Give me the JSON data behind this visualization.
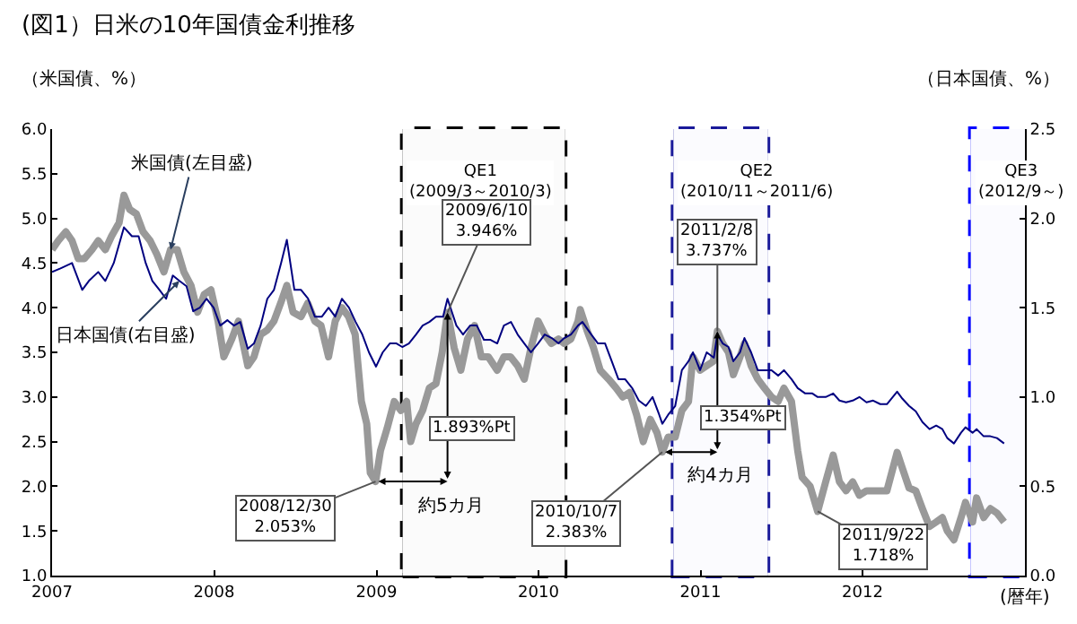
{
  "chart_data": {
    "type": "line",
    "title": "(図1）日米の10年国債金利推移",
    "ylabel": "（米国債、%）",
    "y2label": "（日本国債、%）",
    "xlabel": "(暦年)",
    "xlim": [
      "2007",
      "2013"
    ],
    "xticks": [
      "2007",
      "2008",
      "2009",
      "2010",
      "2011",
      "2012"
    ],
    "ylim": [
      1.0,
      6.0
    ],
    "yticks": [
      {
        "value": 1.0,
        "label": "1.0"
      },
      {
        "value": 1.5,
        "label": "1.5"
      },
      {
        "value": 2.0,
        "label": "2.0"
      },
      {
        "value": 2.5,
        "label": "2.5"
      },
      {
        "value": 3.0,
        "label": "3.0"
      },
      {
        "value": 3.5,
        "label": "3.5"
      },
      {
        "value": 4.0,
        "label": "4.0"
      },
      {
        "value": 4.5,
        "label": "4.5"
      },
      {
        "value": 5.0,
        "label": "5.0"
      },
      {
        "value": 5.5,
        "label": "5.5"
      },
      {
        "value": 6.0,
        "label": "6.0"
      }
    ],
    "y2lim": [
      0.0,
      2.5
    ],
    "y2ticks": [
      {
        "value": 0.0,
        "label": "0.0"
      },
      {
        "value": 0.5,
        "label": "0.5"
      },
      {
        "value": 1.0,
        "label": "1.0"
      },
      {
        "value": 1.5,
        "label": "1.5"
      },
      {
        "value": 2.0,
        "label": "2.0"
      },
      {
        "value": 2.5,
        "label": "2.5"
      }
    ],
    "grid": false,
    "legend": false,
    "marker": "none",
    "line_style": "solid",
    "series": [
      {
        "name": "米国債(左目盛)",
        "color": "#999999",
        "x": [
          "2007-01-01",
          "2007-01-15",
          "2007-02-01",
          "2007-02-15",
          "2007-03-01",
          "2007-03-15",
          "2007-04-01",
          "2007-04-15",
          "2007-05-01",
          "2007-05-15",
          "2007-06-01",
          "2007-06-12",
          "2007-06-25",
          "2007-07-10",
          "2007-07-25",
          "2007-08-10",
          "2007-08-25",
          "2007-09-10",
          "2007-09-25",
          "2007-10-10",
          "2007-10-25",
          "2007-11-10",
          "2007-11-25",
          "2007-12-10",
          "2007-12-25",
          "2008-01-10",
          "2008-01-23",
          "2008-02-10",
          "2008-02-25",
          "2008-03-17",
          "2008-03-31",
          "2008-04-15",
          "2008-04-30",
          "2008-05-15",
          "2008-05-30",
          "2008-06-13",
          "2008-06-27",
          "2008-07-15",
          "2008-07-30",
          "2008-08-15",
          "2008-08-29",
          "2008-09-15",
          "2008-09-30",
          "2008-10-15",
          "2008-10-30",
          "2008-11-14",
          "2008-11-28",
          "2008-12-10",
          "2008-12-18",
          "2008-12-30",
          "2009-01-10",
          "2009-01-25",
          "2009-02-10",
          "2009-02-25",
          "2009-03-10",
          "2009-03-19",
          "2009-03-31",
          "2009-04-15",
          "2009-04-30",
          "2009-05-15",
          "2009-05-29",
          "2009-06-10",
          "2009-06-25",
          "2009-07-10",
          "2009-07-25",
          "2009-08-10",
          "2009-08-25",
          "2009-09-10",
          "2009-09-30",
          "2009-10-15",
          "2009-10-30",
          "2009-11-15",
          "2009-11-30",
          "2009-12-15",
          "2009-12-31",
          "2010-01-15",
          "2010-01-30",
          "2010-02-15",
          "2010-02-28",
          "2010-03-15",
          "2010-03-31",
          "2010-04-05",
          "2010-04-20",
          "2010-05-05",
          "2010-05-20",
          "2010-06-08",
          "2010-06-25",
          "2010-07-10",
          "2010-07-25",
          "2010-08-10",
          "2010-08-25",
          "2010-09-10",
          "2010-09-25",
          "2010-10-07",
          "2010-10-20",
          "2010-11-05",
          "2010-11-20",
          "2010-12-05",
          "2010-12-15",
          "2010-12-31",
          "2011-01-15",
          "2011-01-30",
          "2011-02-08",
          "2011-02-20",
          "2011-03-05",
          "2011-03-16",
          "2011-03-31",
          "2011-04-10",
          "2011-04-25",
          "2011-05-10",
          "2011-05-25",
          "2011-06-10",
          "2011-06-25",
          "2011-07-08",
          "2011-07-25",
          "2011-08-08",
          "2011-08-18",
          "2011-09-05",
          "2011-09-22",
          "2011-10-10",
          "2011-10-27",
          "2011-11-10",
          "2011-11-25",
          "2011-12-10",
          "2011-12-25",
          "2012-01-10",
          "2012-01-25",
          "2012-02-10",
          "2012-02-25",
          "2012-03-19",
          "2012-03-31",
          "2012-04-15",
          "2012-04-30",
          "2012-05-15",
          "2012-05-31",
          "2012-06-15",
          "2012-06-29",
          "2012-07-10",
          "2012-07-25",
          "2012-08-10",
          "2012-08-20",
          "2012-09-05",
          "2012-09-14",
          "2012-09-30",
          "2012-10-15",
          "2012-10-30",
          "2012-11-15"
        ],
        "values": [
          4.65,
          4.75,
          4.85,
          4.75,
          4.55,
          4.55,
          4.65,
          4.75,
          4.65,
          4.8,
          4.95,
          5.26,
          5.1,
          5.05,
          4.85,
          4.75,
          4.6,
          4.4,
          4.65,
          4.65,
          4.4,
          4.25,
          3.95,
          4.15,
          4.2,
          3.85,
          3.45,
          3.65,
          3.85,
          3.35,
          3.45,
          3.7,
          3.75,
          3.85,
          4.05,
          4.25,
          3.95,
          3.9,
          4.05,
          3.85,
          3.8,
          3.45,
          3.85,
          4.0,
          3.9,
          3.7,
          2.95,
          2.7,
          2.15,
          2.053,
          2.4,
          2.65,
          2.95,
          2.85,
          2.95,
          2.5,
          2.7,
          2.85,
          3.1,
          3.15,
          3.5,
          3.946,
          3.55,
          3.3,
          3.65,
          3.8,
          3.45,
          3.45,
          3.3,
          3.45,
          3.45,
          3.35,
          3.2,
          3.55,
          3.85,
          3.7,
          3.6,
          3.65,
          3.6,
          3.65,
          3.85,
          3.98,
          3.75,
          3.55,
          3.3,
          3.2,
          3.1,
          3.0,
          3.05,
          2.8,
          2.5,
          2.75,
          2.6,
          2.383,
          2.55,
          2.55,
          2.85,
          2.95,
          3.45,
          3.3,
          3.35,
          3.4,
          3.737,
          3.6,
          3.5,
          3.25,
          3.45,
          3.6,
          3.35,
          3.2,
          3.1,
          3.0,
          2.95,
          3.1,
          2.95,
          2.4,
          2.1,
          2.0,
          1.718,
          2.05,
          2.35,
          2.05,
          1.95,
          2.05,
          1.9,
          1.95,
          1.95,
          1.95,
          1.95,
          2.38,
          2.2,
          1.98,
          1.95,
          1.75,
          1.55,
          1.6,
          1.65,
          1.5,
          1.4,
          1.65,
          1.82,
          1.6,
          1.87,
          1.65,
          1.75,
          1.7,
          1.6
        ]
      },
      {
        "name": "日本国債(右目盛)",
        "color": "#000080",
        "axis": "y2",
        "x": [
          "2007-01-01",
          "2007-01-20",
          "2007-02-15",
          "2007-03-10",
          "2007-03-25",
          "2007-04-15",
          "2007-05-01",
          "2007-05-20",
          "2007-06-12",
          "2007-06-30",
          "2007-07-15",
          "2007-07-31",
          "2007-08-15",
          "2007-08-31",
          "2007-09-15",
          "2007-09-30",
          "2007-10-15",
          "2007-10-31",
          "2007-11-15",
          "2007-11-30",
          "2007-12-15",
          "2007-12-31",
          "2008-01-15",
          "2008-01-31",
          "2008-02-15",
          "2008-02-29",
          "2008-03-17",
          "2008-03-31",
          "2008-04-15",
          "2008-04-30",
          "2008-05-15",
          "2008-05-31",
          "2008-06-13",
          "2008-06-30",
          "2008-07-15",
          "2008-07-31",
          "2008-08-15",
          "2008-08-31",
          "2008-09-15",
          "2008-09-30",
          "2008-10-15",
          "2008-10-31",
          "2008-11-15",
          "2008-11-30",
          "2008-12-15",
          "2008-12-31",
          "2009-01-15",
          "2009-01-31",
          "2009-02-15",
          "2009-02-28",
          "2009-03-15",
          "2009-03-31",
          "2009-04-15",
          "2009-04-30",
          "2009-05-15",
          "2009-05-31",
          "2009-06-10",
          "2009-06-30",
          "2009-07-15",
          "2009-07-31",
          "2009-08-15",
          "2009-08-31",
          "2009-09-15",
          "2009-09-30",
          "2009-10-15",
          "2009-10-31",
          "2009-11-15",
          "2009-11-30",
          "2009-12-15",
          "2009-12-31",
          "2010-01-15",
          "2010-01-31",
          "2010-02-15",
          "2010-02-28",
          "2010-03-15",
          "2010-03-31",
          "2010-04-10",
          "2010-04-30",
          "2010-05-15",
          "2010-05-31",
          "2010-06-15",
          "2010-06-30",
          "2010-07-15",
          "2010-07-31",
          "2010-08-15",
          "2010-08-31",
          "2010-09-15",
          "2010-09-30",
          "2010-10-07",
          "2010-10-20",
          "2010-11-05",
          "2010-11-20",
          "2010-12-05",
          "2010-12-15",
          "2010-12-31",
          "2011-01-15",
          "2011-01-31",
          "2011-02-08",
          "2011-02-20",
          "2011-03-05",
          "2011-03-16",
          "2011-03-31",
          "2011-04-10",
          "2011-04-25",
          "2011-05-10",
          "2011-05-25",
          "2011-06-10",
          "2011-06-25",
          "2011-07-08",
          "2011-07-25",
          "2011-08-08",
          "2011-08-25",
          "2011-09-10",
          "2011-09-22",
          "2011-10-10",
          "2011-10-27",
          "2011-11-10",
          "2011-11-25",
          "2011-12-10",
          "2011-12-25",
          "2012-01-10",
          "2012-01-25",
          "2012-02-10",
          "2012-02-25",
          "2012-03-19",
          "2012-03-31",
          "2012-04-15",
          "2012-04-30",
          "2012-05-15",
          "2012-05-31",
          "2012-06-15",
          "2012-06-29",
          "2012-07-10",
          "2012-07-25",
          "2012-08-10",
          "2012-08-20",
          "2012-09-05",
          "2012-09-14",
          "2012-09-30",
          "2012-10-15",
          "2012-10-30",
          "2012-11-15"
        ],
        "values": [
          1.7,
          1.72,
          1.75,
          1.6,
          1.65,
          1.7,
          1.65,
          1.75,
          1.95,
          1.9,
          1.9,
          1.75,
          1.65,
          1.6,
          1.55,
          1.68,
          1.65,
          1.62,
          1.48,
          1.5,
          1.55,
          1.5,
          1.4,
          1.43,
          1.4,
          1.42,
          1.27,
          1.3,
          1.4,
          1.55,
          1.6,
          1.75,
          1.88,
          1.6,
          1.6,
          1.55,
          1.45,
          1.45,
          1.5,
          1.45,
          1.55,
          1.5,
          1.42,
          1.35,
          1.25,
          1.17,
          1.25,
          1.3,
          1.3,
          1.28,
          1.3,
          1.35,
          1.4,
          1.42,
          1.45,
          1.45,
          1.55,
          1.4,
          1.35,
          1.4,
          1.4,
          1.32,
          1.32,
          1.3,
          1.4,
          1.42,
          1.35,
          1.3,
          1.25,
          1.3,
          1.35,
          1.33,
          1.3,
          1.33,
          1.35,
          1.4,
          1.42,
          1.35,
          1.3,
          1.3,
          1.2,
          1.1,
          1.1,
          1.05,
          0.98,
          0.95,
          1.0,
          0.9,
          0.85,
          0.9,
          0.95,
          1.15,
          1.2,
          1.25,
          1.15,
          1.25,
          1.22,
          1.35,
          1.3,
          1.28,
          1.2,
          1.25,
          1.33,
          1.25,
          1.15,
          1.15,
          1.15,
          1.12,
          1.15,
          1.1,
          1.05,
          1.02,
          1.02,
          1.0,
          1.0,
          1.02,
          0.98,
          0.97,
          0.98,
          1.0,
          0.97,
          0.98,
          0.96,
          0.96,
          1.03,
          0.99,
          0.95,
          0.92,
          0.86,
          0.82,
          0.84,
          0.82,
          0.77,
          0.74,
          0.8,
          0.83,
          0.8,
          0.82,
          0.78,
          0.78,
          0.77,
          0.74
        ]
      }
    ],
    "bands": [
      {
        "axis": "x",
        "from": "2009-03",
        "to": "2010-03",
        "label": "QE1\n(2009/3～2010/3)",
        "color": "#000000"
      },
      {
        "axis": "x",
        "from": "2010-11",
        "to": "2011-06",
        "label": "QE2\n(2010/11～2011/6)",
        "color": "#1a1a9a"
      },
      {
        "axis": "x",
        "from": "2012-09",
        "to": "2013",
        "label": "QE3\n(2012/9～)",
        "color": "#0000ff"
      }
    ],
    "annotations": [
      {
        "text": "2008/12/30\n2.053%",
        "x": "2008-12-30",
        "y": 2.053
      },
      {
        "text": "2009/6/10\n3.946%",
        "x": "2009-06-10",
        "y": 3.946
      },
      "1.893%Pt",
      {
        "text": "約5カ月",
        "x": "2009-03-20",
        "y": 2.053
      },
      {
        "text": "2010/10/7\n2.383%",
        "x": "2010-10-07",
        "y": 2.383
      },
      {
        "text": "2011/2/8\n3.737%",
        "x": "2011-02-08",
        "y": 3.737
      },
      "1.354%Pt",
      "約4カ月",
      {
        "text": "2011/9/22\n1.718%",
        "x": "2011-09-22",
        "y": 1.718
      }
    ]
  }
}
